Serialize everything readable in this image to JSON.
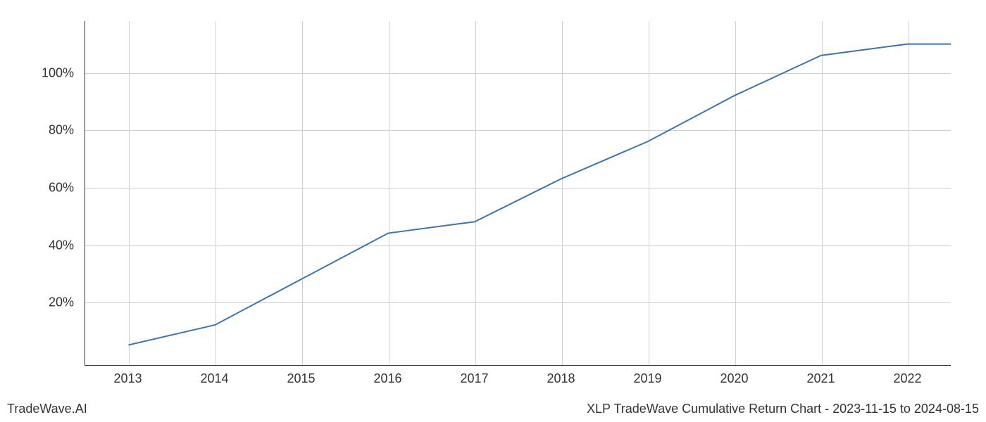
{
  "chart": {
    "type": "line",
    "x_categories": [
      "2013",
      "2014",
      "2015",
      "2016",
      "2017",
      "2018",
      "2019",
      "2020",
      "2021",
      "2022"
    ],
    "y_values": [
      5,
      12,
      28,
      44,
      48,
      63,
      76,
      92,
      106,
      110
    ],
    "x_extra_point": 2022.5,
    "y_extra_value": 110,
    "line_color": "#3a75b0",
    "line_width": 2,
    "background_color": "#ffffff",
    "grid_color": "#d0d0d0",
    "axis_color": "#333333",
    "text_color": "#333333",
    "xlim": [
      2012.5,
      2022.5
    ],
    "ylim": [
      -2,
      118
    ],
    "y_ticks": [
      20,
      40,
      60,
      80,
      100
    ],
    "y_tick_labels": [
      "20%",
      "40%",
      "60%",
      "80%",
      "100%"
    ],
    "x_tick_labels": [
      "2013",
      "2014",
      "2015",
      "2016",
      "2017",
      "2018",
      "2019",
      "2020",
      "2021",
      "2022"
    ],
    "x_tick_positions": [
      2013,
      2014,
      2015,
      2016,
      2017,
      2018,
      2019,
      2020,
      2021,
      2022
    ],
    "tick_fontsize": 18,
    "footer_fontsize": 18
  },
  "footer": {
    "left_text": "TradeWave.AI",
    "right_text": "XLP TradeWave Cumulative Return Chart - 2023-11-15 to 2024-08-15"
  }
}
